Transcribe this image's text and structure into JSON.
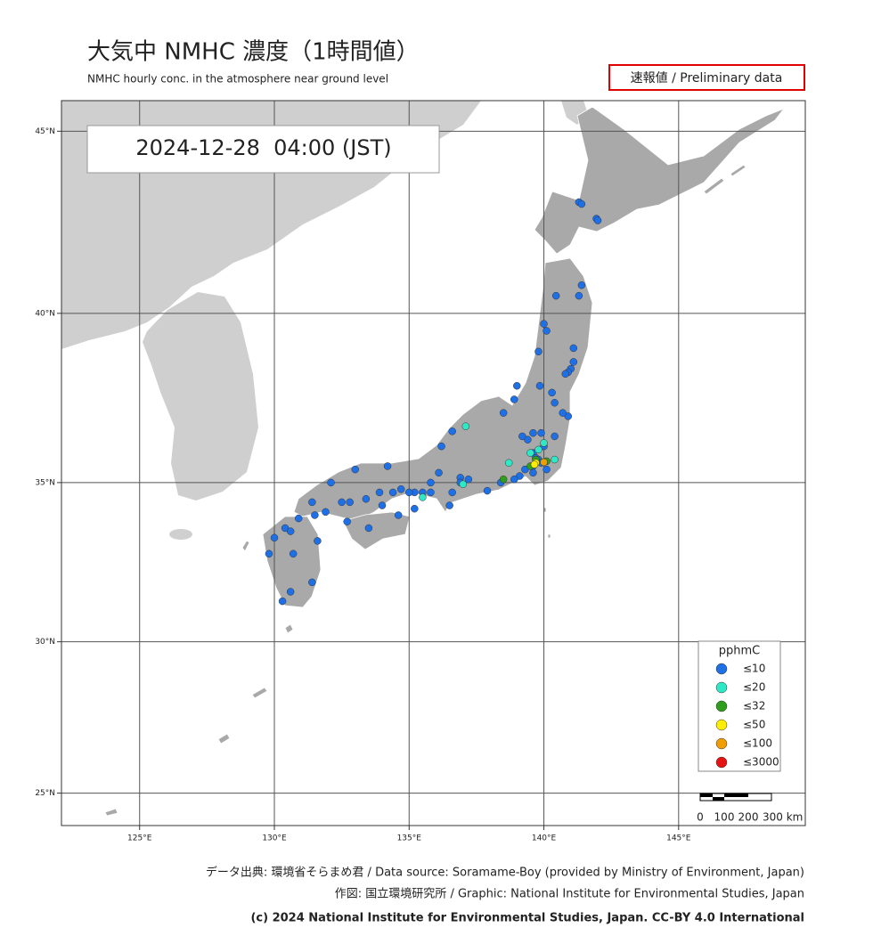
{
  "header": {
    "title": "大気中 NMHC  濃度（1時間値）",
    "subtitle": "NMHC hourly conc. in the atmosphere near ground level",
    "badge": "速報値 / Preliminary data",
    "timestamp": "2024-12-28  04:00 (JST)"
  },
  "map": {
    "xlim": [
      122.1,
      149.7
    ],
    "ylim": [
      23.9,
      45.8
    ],
    "xticks": [
      {
        "value": 125,
        "label": "125°E"
      },
      {
        "value": 130,
        "label": "130°E"
      },
      {
        "value": 135,
        "label": "135°E"
      },
      {
        "value": 140,
        "label": "140°E"
      },
      {
        "value": 145,
        "label": "145°E"
      }
    ],
    "yticks": [
      {
        "value": 25,
        "label": "25°N"
      },
      {
        "value": 30,
        "label": "30°N"
      },
      {
        "value": 35,
        "label": "35°N"
      },
      {
        "value": 40,
        "label": "40°N"
      },
      {
        "value": 45,
        "label": "45°N"
      }
    ],
    "grid": true,
    "legend": {
      "title": "pphmC",
      "items": [
        {
          "label": "≤10",
          "color": "#1f6fe5"
        },
        {
          "label": "≤20",
          "color": "#2ee8c6"
        },
        {
          "label": "≤32",
          "color": "#2f9e1c"
        },
        {
          "label": "≤50",
          "color": "#ffee00"
        },
        {
          "label": "≤100",
          "color": "#ef9d00"
        },
        {
          "label": "≤3000",
          "color": "#e51414"
        }
      ]
    },
    "scale_labels": [
      "0",
      "100",
      "200",
      "300 km"
    ],
    "stations": [
      [
        141.3,
        43.1,
        0
      ],
      [
        141.4,
        43.05,
        0
      ],
      [
        141.95,
        42.65,
        0
      ],
      [
        142.0,
        42.6,
        0
      ],
      [
        140.45,
        40.5,
        0
      ],
      [
        141.3,
        40.5,
        0
      ],
      [
        141.4,
        40.8,
        0
      ],
      [
        140.0,
        39.7,
        0
      ],
      [
        140.1,
        39.5,
        0
      ],
      [
        141.1,
        39.0,
        0
      ],
      [
        141.0,
        38.4,
        0
      ],
      [
        140.9,
        38.3,
        0
      ],
      [
        140.8,
        38.25,
        0
      ],
      [
        141.1,
        38.6,
        0
      ],
      [
        139.8,
        38.9,
        0
      ],
      [
        139.85,
        37.9,
        0
      ],
      [
        140.4,
        37.4,
        0
      ],
      [
        140.9,
        37.0,
        0
      ],
      [
        140.7,
        37.1,
        0
      ],
      [
        140.3,
        37.7,
        0
      ],
      [
        139.0,
        37.9,
        0
      ],
      [
        138.9,
        37.5,
        0
      ],
      [
        138.5,
        37.1,
        0
      ],
      [
        139.9,
        36.5,
        0
      ],
      [
        139.6,
        36.5,
        0
      ],
      [
        140.4,
        36.4,
        0
      ],
      [
        140.0,
        36.1,
        0
      ],
      [
        139.4,
        36.3,
        0
      ],
      [
        139.2,
        36.4,
        0
      ],
      [
        139.6,
        35.9,
        0
      ],
      [
        139.7,
        35.75,
        0
      ],
      [
        139.8,
        35.7,
        0
      ],
      [
        139.6,
        35.5,
        0
      ],
      [
        139.9,
        35.6,
        0
      ],
      [
        140.1,
        35.4,
        0
      ],
      [
        139.3,
        35.4,
        0
      ],
      [
        139.6,
        35.3,
        0
      ],
      [
        139.1,
        35.2,
        0
      ],
      [
        138.4,
        35.0,
        0
      ],
      [
        138.9,
        35.1,
        0
      ],
      [
        137.9,
        34.75,
        0
      ],
      [
        137.2,
        35.1,
        0
      ],
      [
        136.9,
        35.15,
        0
      ],
      [
        136.9,
        35.0,
        0
      ],
      [
        136.6,
        34.7,
        0
      ],
      [
        136.5,
        34.3,
        0
      ],
      [
        136.6,
        36.55,
        0
      ],
      [
        136.2,
        36.1,
        0
      ],
      [
        135.8,
        35.0,
        0
      ],
      [
        135.5,
        34.7,
        0
      ],
      [
        135.2,
        34.7,
        0
      ],
      [
        135.0,
        34.7,
        0
      ],
      [
        134.7,
        34.8,
        0
      ],
      [
        134.4,
        34.7,
        0
      ],
      [
        133.9,
        34.7,
        0
      ],
      [
        133.4,
        34.5,
        0
      ],
      [
        132.8,
        34.4,
        0
      ],
      [
        132.5,
        34.4,
        0
      ],
      [
        131.9,
        34.1,
        0
      ],
      [
        131.5,
        34.0,
        0
      ],
      [
        130.9,
        33.9,
        0
      ],
      [
        130.4,
        33.6,
        0
      ],
      [
        130.6,
        33.5,
        0
      ],
      [
        130.0,
        33.3,
        0
      ],
      [
        129.8,
        32.8,
        0
      ],
      [
        130.7,
        32.8,
        0
      ],
      [
        131.6,
        33.2,
        0
      ],
      [
        131.4,
        31.9,
        0
      ],
      [
        130.6,
        31.6,
        0
      ],
      [
        130.3,
        31.3,
        0
      ],
      [
        134.0,
        34.3,
        0
      ],
      [
        133.5,
        33.6,
        0
      ],
      [
        132.7,
        33.8,
        0
      ],
      [
        134.6,
        34.0,
        0
      ],
      [
        135.2,
        34.2,
        0
      ],
      [
        135.8,
        34.7,
        0
      ],
      [
        136.1,
        35.3,
        0
      ],
      [
        133.0,
        35.4,
        0
      ],
      [
        134.2,
        35.5,
        0
      ],
      [
        132.1,
        35.0,
        0
      ],
      [
        131.4,
        34.4,
        0
      ],
      [
        137.1,
        36.7,
        1
      ],
      [
        140.0,
        36.2,
        1
      ],
      [
        139.8,
        36.0,
        1
      ],
      [
        140.4,
        35.7,
        1
      ],
      [
        139.5,
        35.9,
        1
      ],
      [
        138.7,
        35.6,
        1
      ],
      [
        137.0,
        34.95,
        1
      ],
      [
        135.5,
        34.55,
        1
      ],
      [
        139.7,
        35.7,
        2
      ],
      [
        139.5,
        35.5,
        2
      ],
      [
        140.1,
        35.65,
        2
      ],
      [
        138.5,
        35.1,
        2
      ],
      [
        139.7,
        35.6,
        3
      ],
      [
        139.65,
        35.55,
        3
      ],
      [
        140.0,
        35.62,
        4
      ]
    ]
  },
  "footer": {
    "source": "データ出典: 環境省そらまめ君 / Data source: Soramame-Boy (provided by Ministry of Environment, Japan)",
    "graphic": "作図: 国立環境研究所 / Graphic: National Institute for Environmental Studies, Japan",
    "copyright": "(c) 2024 National Institute for Environmental Studies, Japan. CC-BY 4.0 International"
  }
}
